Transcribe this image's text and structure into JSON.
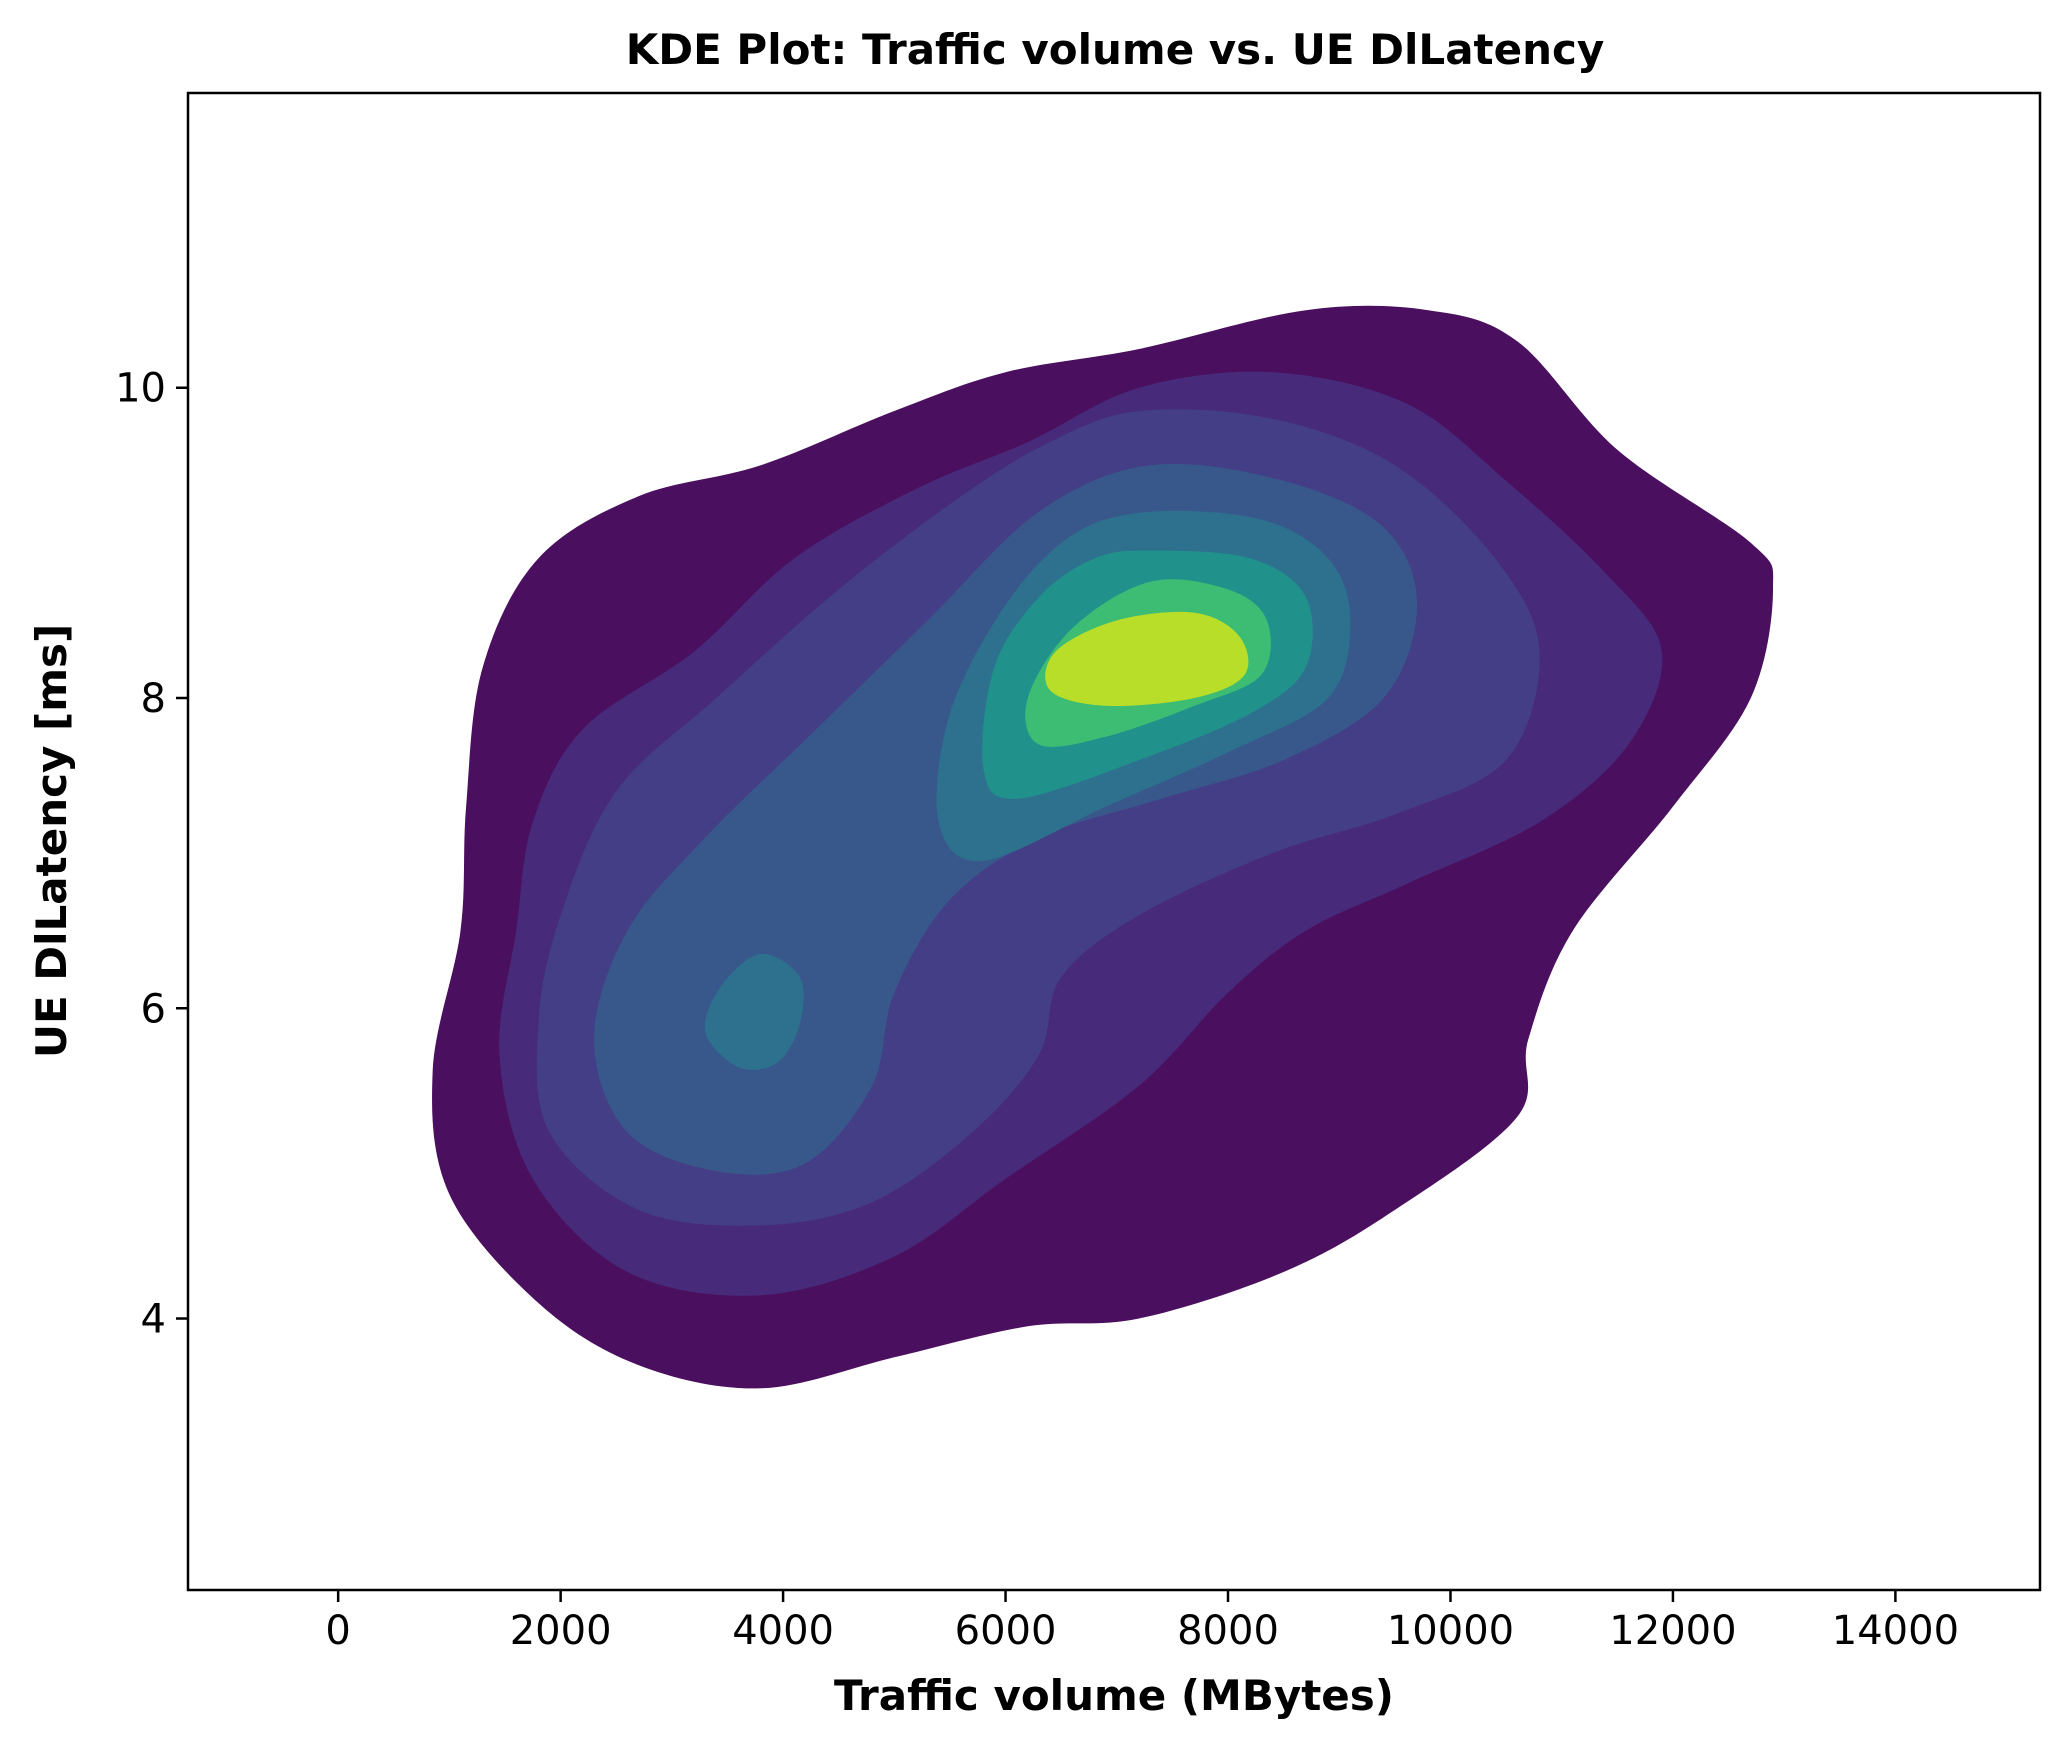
{
  "chart_data": {
    "type": "kde_contour",
    "title": "KDE Plot: Traffic volume vs. UE DlLatency",
    "xlabel": "Traffic volume (MBytes)",
    "ylabel": "UE DlLatency [ms]",
    "xlim": [
      -1350,
      15300
    ],
    "ylim": [
      2.25,
      11.9
    ],
    "x_ticks": [
      0,
      2000,
      4000,
      6000,
      8000,
      10000,
      12000,
      14000
    ],
    "y_ticks": [
      4,
      6,
      8,
      10
    ],
    "x_tick_labels": [
      "0",
      "2000",
      "4000",
      "6000",
      "8000",
      "10000",
      "12000",
      "14000"
    ],
    "y_tick_labels": [
      "4",
      "6",
      "8",
      "10"
    ],
    "colormap": "viridis",
    "levels": [
      {
        "level": 1,
        "color": "#4a0f5e",
        "path": [
          [
            8700,
            10.5
          ],
          [
            9800,
            10.5
          ],
          [
            10600,
            10.3
          ],
          [
            11500,
            9.6
          ],
          [
            12700,
            9.0
          ],
          [
            12900,
            8.7
          ],
          [
            12700,
            8.0
          ],
          [
            12000,
            7.3
          ],
          [
            11100,
            6.5
          ],
          [
            10700,
            5.8
          ],
          [
            10600,
            5.3
          ],
          [
            9500,
            4.7
          ],
          [
            8500,
            4.3
          ],
          [
            7200,
            4.0
          ],
          [
            6200,
            3.95
          ],
          [
            5000,
            3.75
          ],
          [
            3800,
            3.55
          ],
          [
            2700,
            3.7
          ],
          [
            1800,
            4.1
          ],
          [
            1000,
            4.8
          ],
          [
            850,
            5.6
          ],
          [
            1100,
            6.5
          ],
          [
            1150,
            7.3
          ],
          [
            1300,
            8.2
          ],
          [
            1800,
            8.9
          ],
          [
            2700,
            9.3
          ],
          [
            3800,
            9.5
          ],
          [
            5000,
            9.85
          ],
          [
            6000,
            10.1
          ],
          [
            7200,
            10.25
          ]
        ]
      },
      {
        "level": 2,
        "color": "#472a79",
        "path": [
          [
            7200,
            10.0
          ],
          [
            8400,
            10.1
          ],
          [
            9600,
            9.9
          ],
          [
            10500,
            9.4
          ],
          [
            11400,
            8.8
          ],
          [
            11900,
            8.3
          ],
          [
            11600,
            7.7
          ],
          [
            10800,
            7.2
          ],
          [
            9600,
            6.8
          ],
          [
            8700,
            6.5
          ],
          [
            8000,
            6.1
          ],
          [
            7200,
            5.5
          ],
          [
            6000,
            4.9
          ],
          [
            5000,
            4.4
          ],
          [
            3800,
            4.15
          ],
          [
            2600,
            4.3
          ],
          [
            1750,
            4.9
          ],
          [
            1450,
            5.7
          ],
          [
            1600,
            6.5
          ],
          [
            1750,
            7.2
          ],
          [
            2200,
            7.8
          ],
          [
            3200,
            8.3
          ],
          [
            4100,
            8.9
          ],
          [
            5200,
            9.35
          ],
          [
            6200,
            9.65
          ]
        ]
      },
      {
        "level": 3,
        "color": "#433e85",
        "path": [
          [
            7200,
            9.85
          ],
          [
            8400,
            9.8
          ],
          [
            9500,
            9.5
          ],
          [
            10400,
            8.9
          ],
          [
            10800,
            8.3
          ],
          [
            10500,
            7.6
          ],
          [
            9500,
            7.25
          ],
          [
            8400,
            7.0
          ],
          [
            7200,
            6.6
          ],
          [
            6500,
            6.2
          ],
          [
            6300,
            5.7
          ],
          [
            5700,
            5.2
          ],
          [
            4800,
            4.75
          ],
          [
            3800,
            4.6
          ],
          [
            2700,
            4.7
          ],
          [
            1900,
            5.2
          ],
          [
            1800,
            5.9
          ],
          [
            2000,
            6.6
          ],
          [
            2500,
            7.4
          ],
          [
            3400,
            8.0
          ],
          [
            4500,
            8.7
          ],
          [
            5600,
            9.3
          ],
          [
            6400,
            9.65
          ]
        ]
      },
      {
        "level": 4,
        "color": "#38588c",
        "path": [
          [
            7300,
            9.5
          ],
          [
            8500,
            9.4
          ],
          [
            9400,
            9.1
          ],
          [
            9700,
            8.6
          ],
          [
            9400,
            8.0
          ],
          [
            8500,
            7.6
          ],
          [
            7400,
            7.35
          ],
          [
            6300,
            7.1
          ],
          [
            5500,
            6.7
          ],
          [
            5000,
            6.1
          ],
          [
            4800,
            5.5
          ],
          [
            4200,
            5.0
          ],
          [
            3400,
            4.95
          ],
          [
            2600,
            5.2
          ],
          [
            2300,
            5.8
          ],
          [
            2600,
            6.5
          ],
          [
            3300,
            7.1
          ],
          [
            4300,
            7.8
          ],
          [
            5300,
            8.5
          ],
          [
            6300,
            9.2
          ]
        ]
      },
      {
        "level": 5,
        "color": "#2d718e",
        "path": [
          [
            7300,
            9.2
          ],
          [
            8300,
            9.15
          ],
          [
            8900,
            8.9
          ],
          [
            9100,
            8.5
          ],
          [
            8900,
            8.0
          ],
          [
            8000,
            7.65
          ],
          [
            6900,
            7.3
          ],
          [
            5800,
            6.95
          ],
          [
            5400,
            7.2
          ],
          [
            5500,
            7.9
          ],
          [
            6000,
            8.6
          ],
          [
            6600,
            9.05
          ]
        ]
      },
      {
        "level": 5,
        "color": "#2d718e",
        "path": [
          [
            3800,
            6.35
          ],
          [
            4150,
            6.2
          ],
          [
            4150,
            5.9
          ],
          [
            3950,
            5.65
          ],
          [
            3600,
            5.62
          ],
          [
            3300,
            5.85
          ],
          [
            3450,
            6.15
          ]
        ]
      },
      {
        "level": 6,
        "color": "#21918c",
        "path": [
          [
            7300,
            8.95
          ],
          [
            8200,
            8.9
          ],
          [
            8700,
            8.65
          ],
          [
            8700,
            8.2
          ],
          [
            8200,
            7.9
          ],
          [
            7200,
            7.6
          ],
          [
            6100,
            7.35
          ],
          [
            5800,
            7.55
          ],
          [
            5900,
            8.2
          ],
          [
            6300,
            8.65
          ],
          [
            6800,
            8.9
          ]
        ]
      },
      {
        "level": 7,
        "color": "#3dbc74",
        "path": [
          [
            7300,
            8.75
          ],
          [
            8000,
            8.7
          ],
          [
            8350,
            8.5
          ],
          [
            8300,
            8.15
          ],
          [
            7700,
            7.95
          ],
          [
            6900,
            7.75
          ],
          [
            6300,
            7.7
          ],
          [
            6200,
            8.0
          ],
          [
            6600,
            8.45
          ]
        ]
      },
      {
        "level": 8,
        "color": "#b8de29",
        "path": [
          [
            7700,
            8.55
          ],
          [
            8100,
            8.4
          ],
          [
            8150,
            8.15
          ],
          [
            7700,
            8.0
          ],
          [
            6900,
            7.95
          ],
          [
            6400,
            8.05
          ],
          [
            6450,
            8.3
          ],
          [
            7000,
            8.5
          ]
        ]
      }
    ]
  }
}
